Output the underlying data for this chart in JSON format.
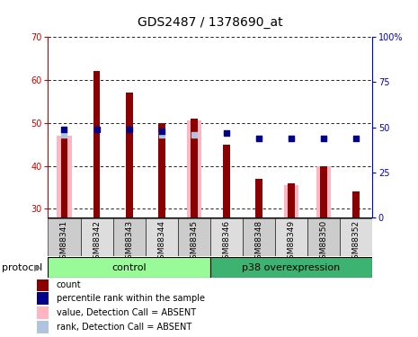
{
  "title": "GDS2487 / 1378690_at",
  "samples": [
    "GSM88341",
    "GSM88342",
    "GSM88343",
    "GSM88344",
    "GSM88345",
    "GSM88346",
    "GSM88348",
    "GSM88349",
    "GSM88350",
    "GSM88352"
  ],
  "ylim_left": [
    28,
    70
  ],
  "ylim_right": [
    0,
    100
  ],
  "yticks_left": [
    30,
    40,
    50,
    60,
    70
  ],
  "yticks_right": [
    0,
    25,
    50,
    75,
    100
  ],
  "count": [
    48,
    62,
    57,
    50,
    51,
    45,
    37,
    36,
    40,
    34
  ],
  "percentile_rank": [
    49,
    49,
    49,
    48,
    null,
    47,
    44,
    44,
    44,
    44
  ],
  "value_absent": [
    47,
    null,
    null,
    null,
    50.5,
    null,
    null,
    35.5,
    40,
    null
  ],
  "rank_absent": [
    46,
    null,
    null,
    46,
    46,
    null,
    44,
    44,
    44,
    null
  ],
  "control_indices": [
    0,
    1,
    2,
    3,
    4
  ],
  "p38_indices": [
    5,
    6,
    7,
    8,
    9
  ],
  "bar_color_count": "#8B0000",
  "bar_color_absent": "#FFB6C1",
  "dot_color_rank": "#00008B",
  "dot_color_rank_absent": "#B0C4DE",
  "control_color": "#98FB98",
  "p38_color": "#3CB371",
  "title_fontsize": 10,
  "tick_fontsize": 7,
  "label_fontsize": 6.5,
  "legend_fontsize": 7
}
